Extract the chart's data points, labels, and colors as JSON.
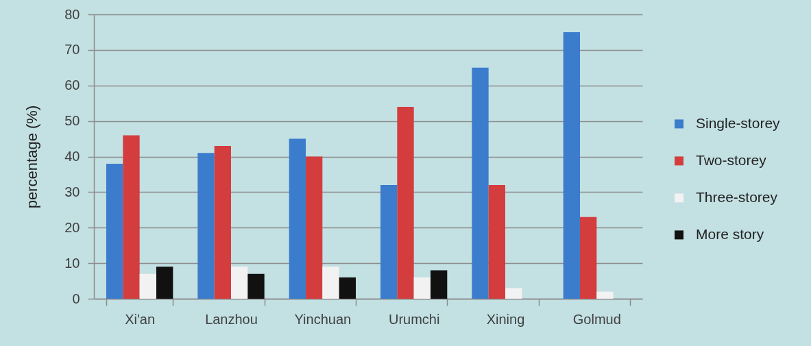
{
  "chart_data": {
    "type": "bar",
    "ylabel": "percentage (%)",
    "categories": [
      "Xi'an",
      "Lanzhou",
      "Yinchuan",
      "Urumchi",
      "Xining",
      "Golmud"
    ],
    "series": [
      {
        "name": "Single-storey",
        "color": "#3b7dcc",
        "values": [
          38,
          41,
          45,
          32,
          65,
          75
        ]
      },
      {
        "name": "Two-storey",
        "color": "#d43d3d",
        "values": [
          46,
          43,
          40,
          54,
          32,
          23
        ]
      },
      {
        "name": "Three-storey",
        "color": "#f2f2f2",
        "values": [
          7,
          9,
          9,
          6,
          3,
          2
        ]
      },
      {
        "name": "More story",
        "color": "#111111",
        "values": [
          9,
          7,
          6,
          8,
          null,
          null
        ]
      }
    ],
    "ylim": [
      0,
      80
    ],
    "yticks": [
      0,
      10,
      20,
      30,
      40,
      50,
      60,
      70,
      80
    ],
    "grid": "y",
    "legend": "right"
  }
}
